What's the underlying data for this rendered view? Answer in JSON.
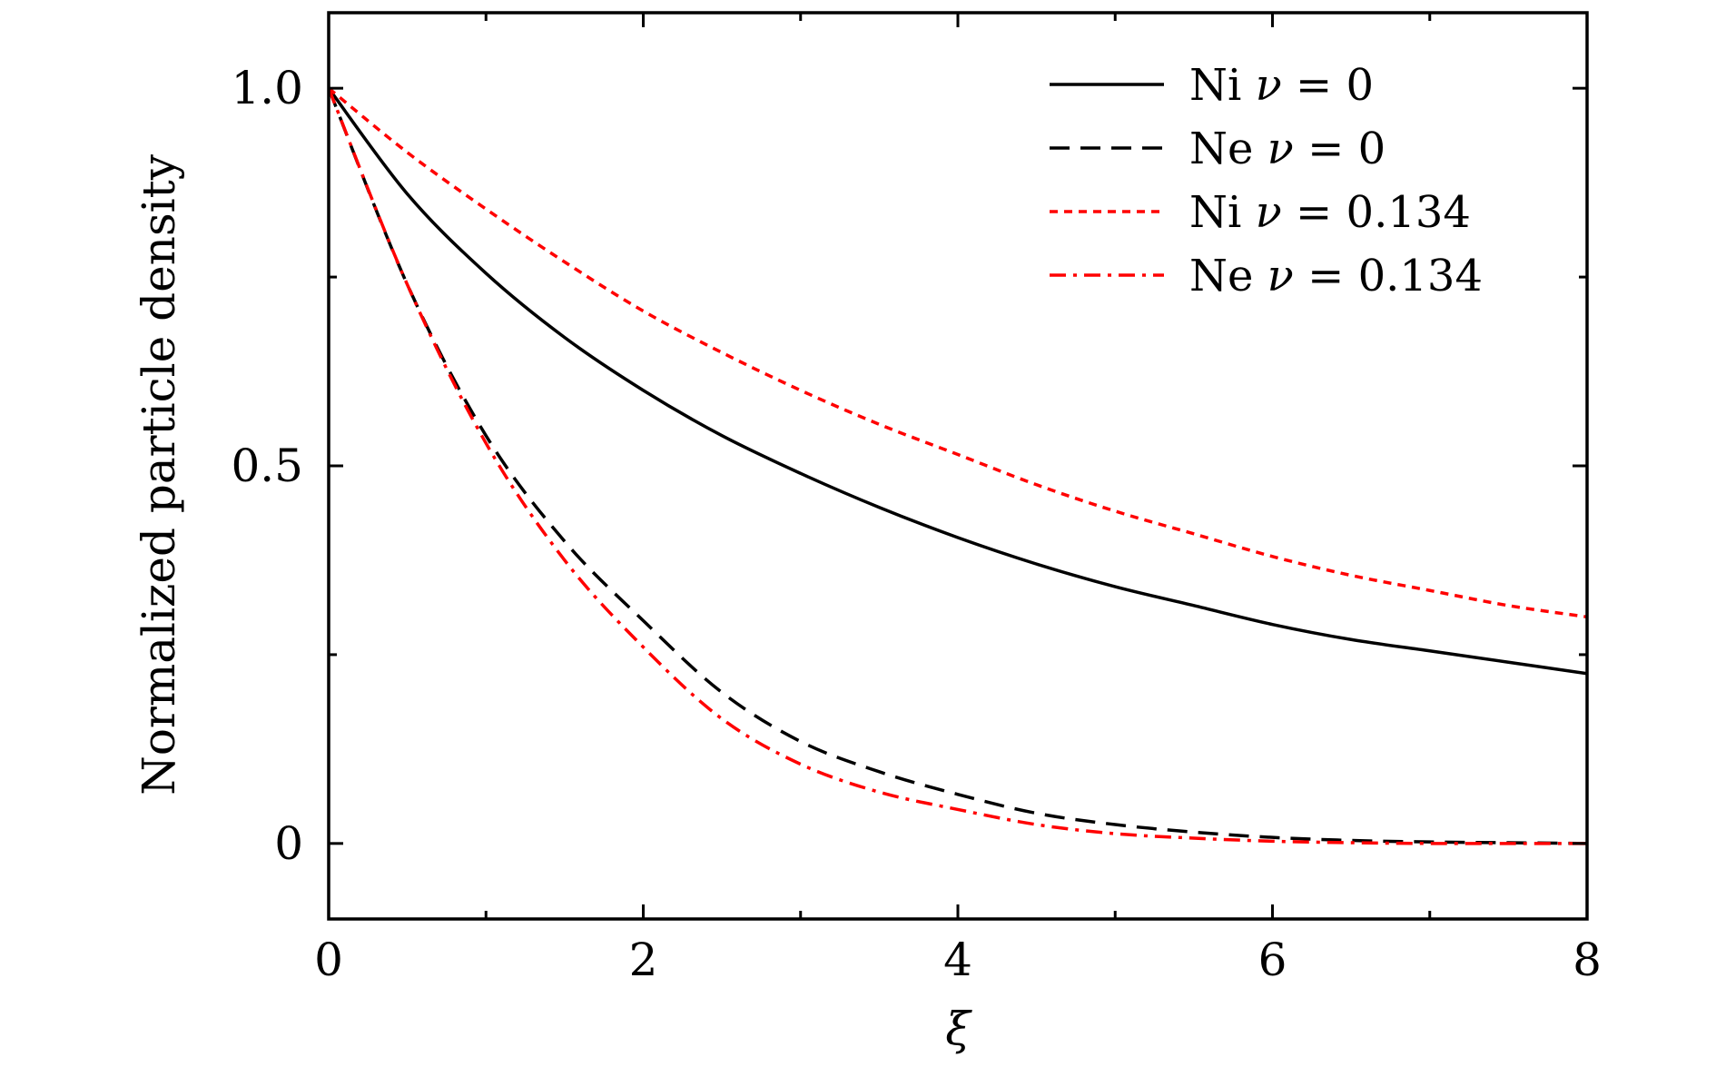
{
  "chart_data": {
    "type": "line",
    "title": "",
    "xlabel": "ξ",
    "ylabel": "Normalized particle density",
    "xlim": [
      0,
      8
    ],
    "ylim": [
      -0.1,
      1.1
    ],
    "x_ticks": [
      0,
      2,
      4,
      6,
      8
    ],
    "x_tick_labels": [
      "0",
      "2",
      "4",
      "6",
      "8"
    ],
    "x_minor_ticks": [
      1,
      3,
      5,
      7
    ],
    "y_ticks": [
      0,
      0.5,
      1.0
    ],
    "y_tick_labels": [
      "0",
      "0.5",
      "1.0"
    ],
    "y_minor_ticks": [
      0.25,
      0.75
    ],
    "grid": false,
    "legend_position": "top-right",
    "x": [
      0,
      0.5,
      1,
      1.5,
      2,
      2.5,
      3,
      3.5,
      4,
      4.5,
      5,
      5.5,
      6,
      6.5,
      7,
      7.5,
      8
    ],
    "series": [
      {
        "name": "Ni ν = 0",
        "legend_prefix": "Ni",
        "legend_value": "0",
        "color": "#000000",
        "dash": "solid",
        "values": [
          1.0,
          0.86,
          0.755,
          0.67,
          0.6,
          0.54,
          0.49,
          0.445,
          0.405,
          0.37,
          0.34,
          0.315,
          0.29,
          0.27,
          0.255,
          0.24,
          0.225
        ]
      },
      {
        "name": "Ne ν = 0",
        "legend_prefix": "Ne",
        "legend_value": "0",
        "color": "#000000",
        "dash": "dashed",
        "values": [
          1.0,
          0.74,
          0.54,
          0.4,
          0.295,
          0.2,
          0.135,
          0.095,
          0.065,
          0.04,
          0.025,
          0.015,
          0.008,
          0.004,
          0.002,
          0.001,
          0.0
        ]
      },
      {
        "name": "Ni ν = 0.134",
        "legend_prefix": "Ni",
        "legend_value": "0.134",
        "color": "#ff0000",
        "dash": "dotted",
        "values": [
          1.0,
          0.915,
          0.84,
          0.77,
          0.705,
          0.65,
          0.6,
          0.555,
          0.515,
          0.475,
          0.44,
          0.41,
          0.38,
          0.355,
          0.335,
          0.315,
          0.3
        ]
      },
      {
        "name": "Ne ν = 0.134",
        "legend_prefix": "Ne",
        "legend_value": "0.134",
        "color": "#ff0000",
        "dash": "dashdot",
        "values": [
          1.0,
          0.74,
          0.53,
          0.375,
          0.26,
          0.165,
          0.105,
          0.068,
          0.045,
          0.025,
          0.013,
          0.007,
          0.003,
          0.001,
          0.0,
          0.0,
          0.0
        ]
      }
    ]
  }
}
